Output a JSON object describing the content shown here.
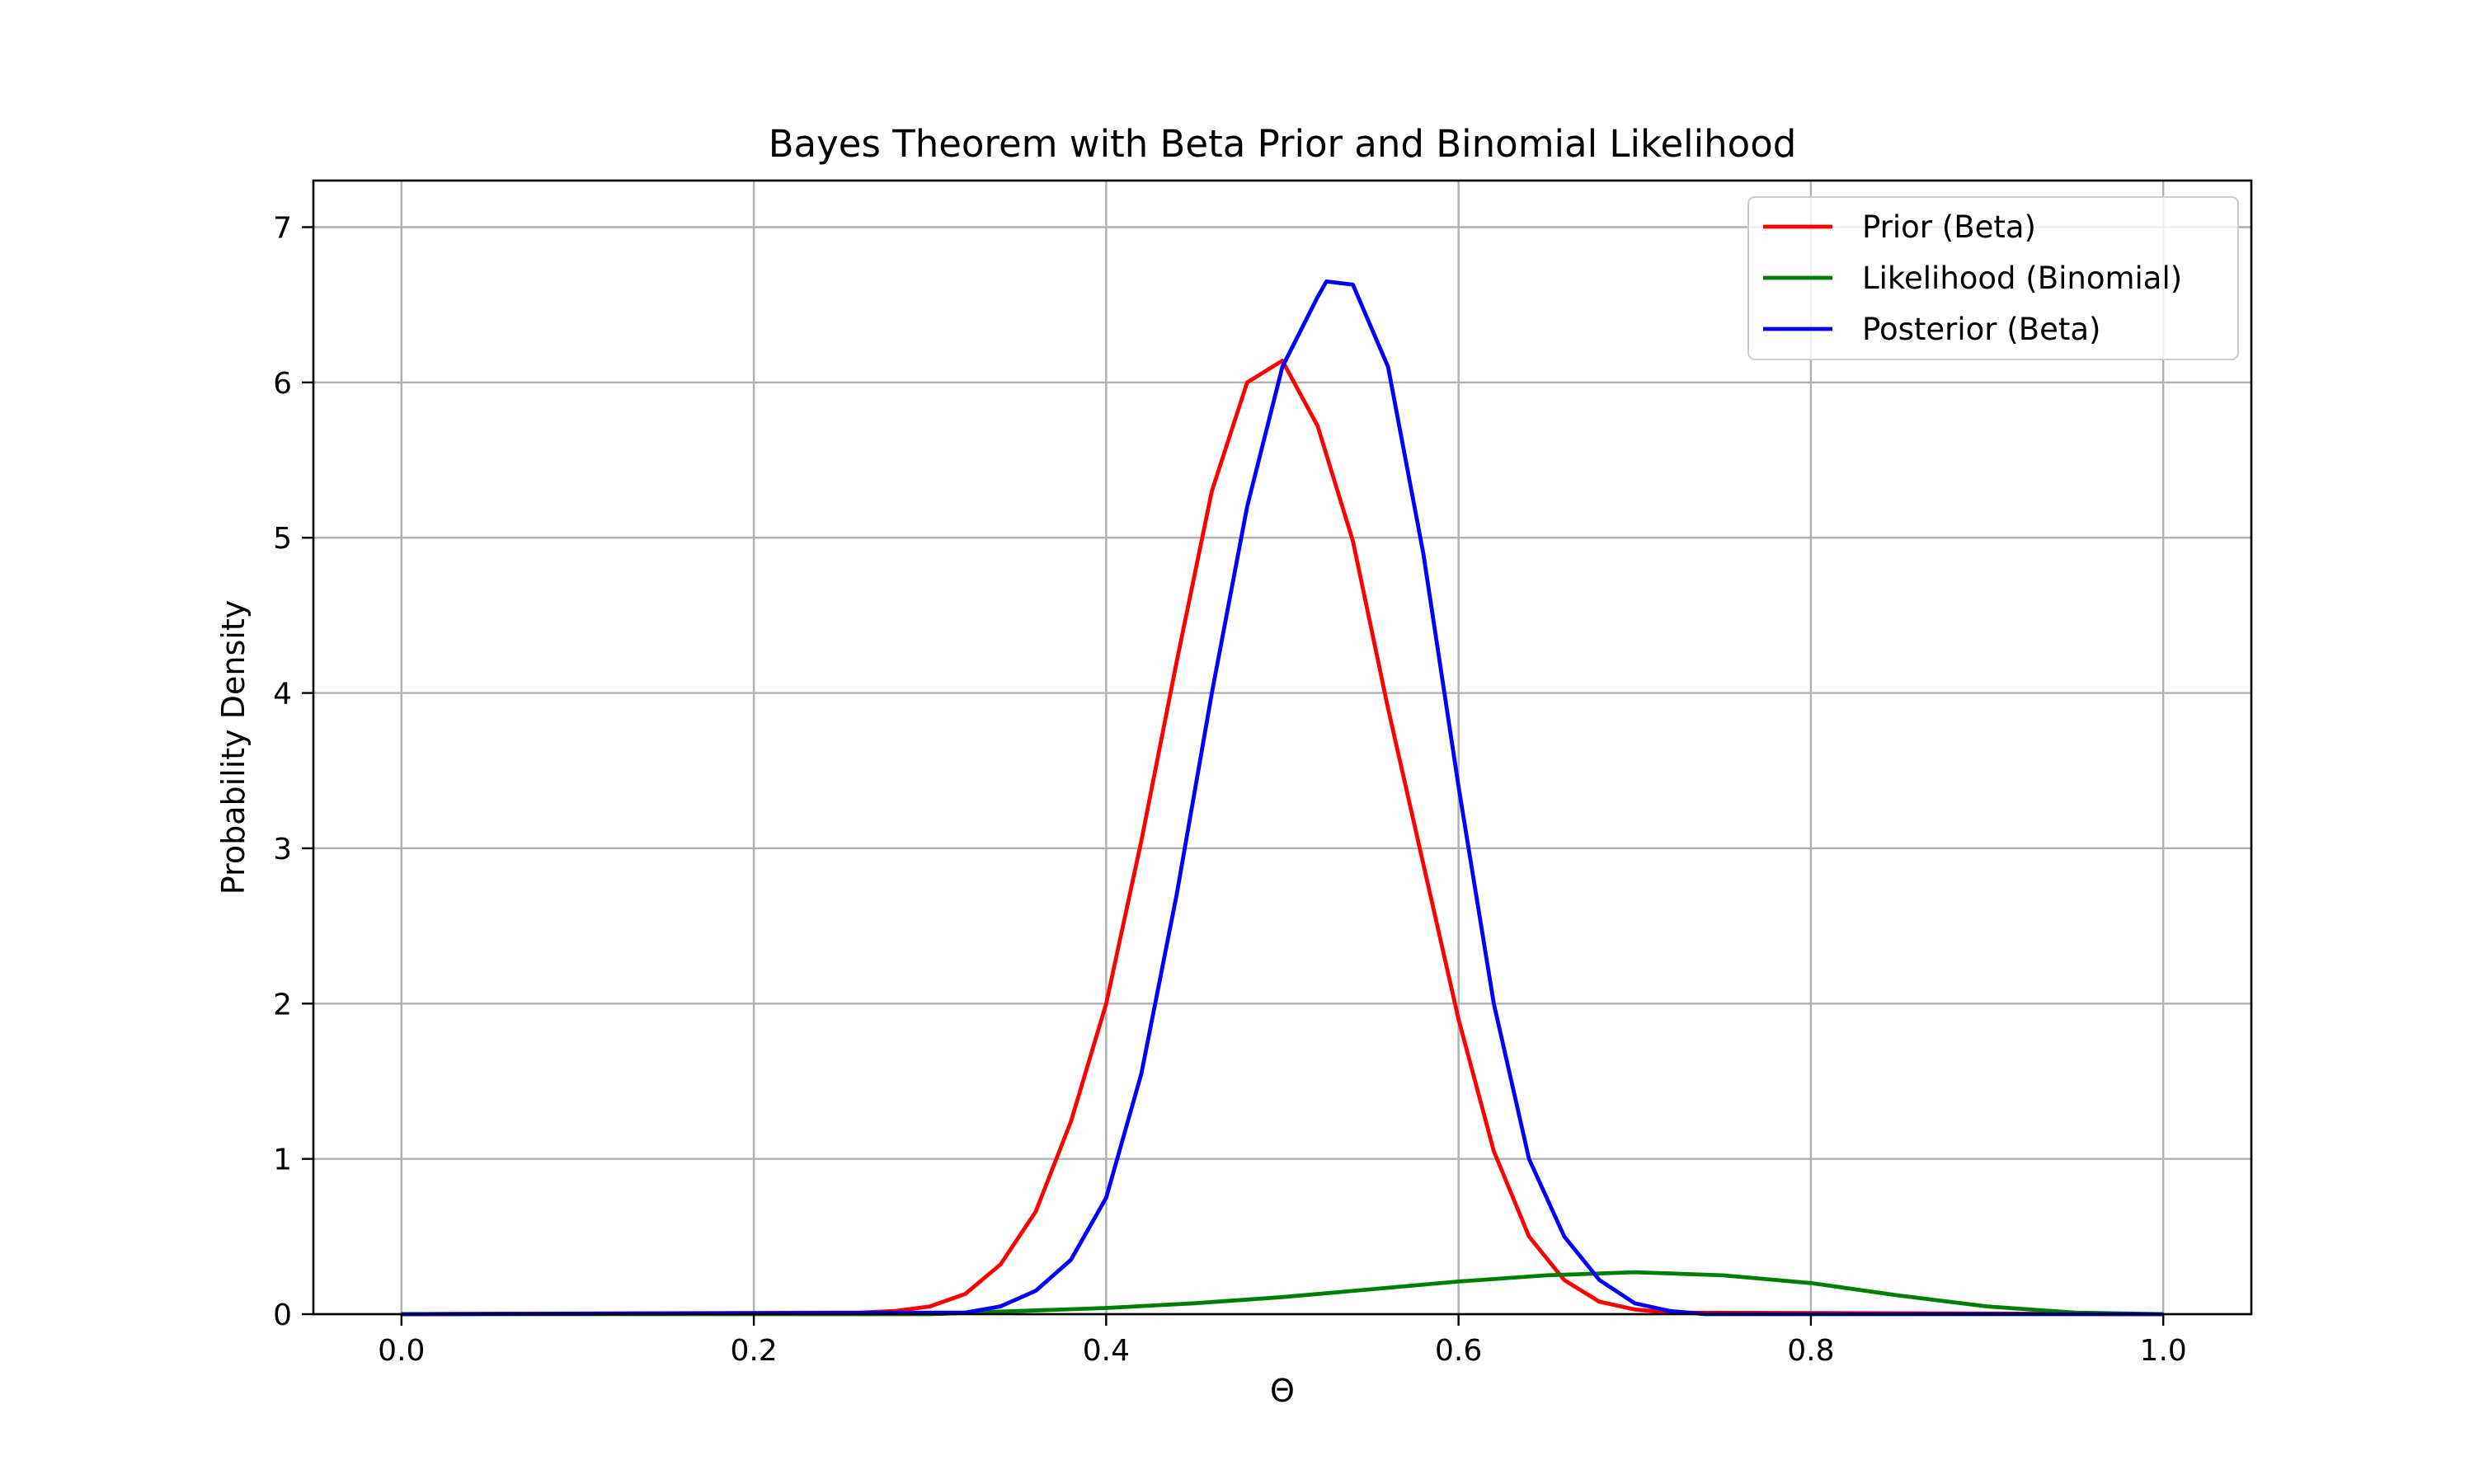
{
  "chart_data": {
    "type": "line",
    "title": "Bayes Theorem with Beta Prior and Binomial Likelihood",
    "xlabel": "Θ",
    "ylabel": "Probability Density",
    "xlim": [
      -0.05,
      1.05
    ],
    "ylim": [
      0,
      7.3
    ],
    "xticks": [
      0.0,
      0.2,
      0.4,
      0.6,
      0.8,
      1.0
    ],
    "xtick_labels": [
      "0.0",
      "0.2",
      "0.4",
      "0.6",
      "0.8",
      "1.0"
    ],
    "yticks": [
      0,
      1,
      2,
      3,
      4,
      5,
      6,
      7
    ],
    "ytick_labels": [
      "0",
      "1",
      "2",
      "3",
      "4",
      "5",
      "6",
      "7"
    ],
    "grid": true,
    "legend_position": "top-right",
    "series": [
      {
        "name": "Prior (Beta)",
        "color": "#ff0000",
        "x": [
          0.0,
          0.26,
          0.28,
          0.3,
          0.32,
          0.34,
          0.36,
          0.38,
          0.4,
          0.42,
          0.44,
          0.46,
          0.48,
          0.5,
          0.52,
          0.54,
          0.56,
          0.58,
          0.6,
          0.62,
          0.64,
          0.66,
          0.68,
          0.7,
          0.72,
          1.0
        ],
        "y": [
          0.0,
          0.01,
          0.02,
          0.05,
          0.13,
          0.32,
          0.66,
          1.24,
          2.0,
          3.05,
          4.2,
          5.3,
          6.0,
          6.14,
          5.72,
          4.98,
          3.9,
          2.9,
          1.9,
          1.05,
          0.5,
          0.22,
          0.08,
          0.03,
          0.01,
          0.0
        ]
      },
      {
        "name": "Likelihood (Binomial)",
        "color": "#008000",
        "x": [
          0.0,
          0.3,
          0.35,
          0.4,
          0.45,
          0.5,
          0.55,
          0.6,
          0.65,
          0.7,
          0.75,
          0.8,
          0.85,
          0.9,
          0.95,
          1.0
        ],
        "y": [
          0.0,
          0.0,
          0.02,
          0.04,
          0.07,
          0.11,
          0.16,
          0.21,
          0.25,
          0.27,
          0.25,
          0.2,
          0.12,
          0.05,
          0.01,
          0.0
        ]
      },
      {
        "name": "Posterior (Beta)",
        "color": "#0000ff",
        "x": [
          0.0,
          0.32,
          0.34,
          0.36,
          0.38,
          0.4,
          0.42,
          0.44,
          0.46,
          0.48,
          0.5,
          0.52,
          0.525,
          0.54,
          0.56,
          0.58,
          0.6,
          0.62,
          0.64,
          0.66,
          0.68,
          0.7,
          0.72,
          0.74,
          1.0
        ],
        "y": [
          0.0,
          0.01,
          0.05,
          0.15,
          0.35,
          0.75,
          1.55,
          2.7,
          4.0,
          5.2,
          6.1,
          6.55,
          6.65,
          6.63,
          6.1,
          4.9,
          3.4,
          2.0,
          1.0,
          0.5,
          0.22,
          0.07,
          0.02,
          0.0,
          0.0
        ]
      }
    ]
  }
}
